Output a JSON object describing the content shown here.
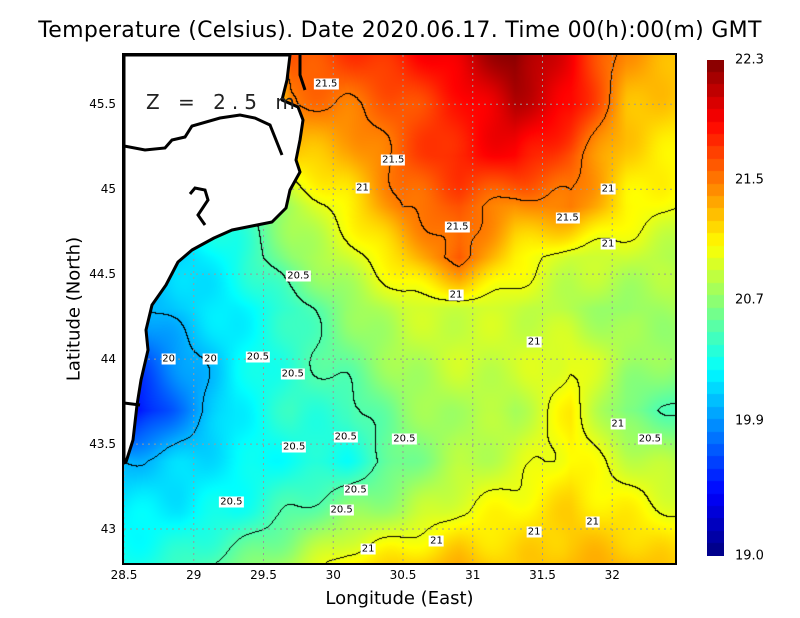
{
  "chart_data": {
    "type": "heatmap",
    "title": "Temperature (Celsius). Date 2020.06.17. Time 00(h):00(m) GMT",
    "annotation": "Z = 2.5 m",
    "xlabel": "Longitude (East)",
    "ylabel": "Latitude (North)",
    "xlim": [
      28.5,
      32.45
    ],
    "ylim": [
      42.8,
      45.79
    ],
    "xticks": [
      "28.5",
      "29",
      "29.5",
      "30",
      "30.5",
      "31",
      "31.5",
      "32"
    ],
    "xtick_values": [
      28.5,
      29,
      29.5,
      30,
      30.5,
      31,
      31.5,
      32
    ],
    "yticks": [
      "43",
      "43.5",
      "44",
      "44.5",
      "45",
      "45.5"
    ],
    "ytick_values": [
      43,
      43.5,
      44,
      44.5,
      45,
      45.5
    ],
    "grid": true,
    "colorbar": {
      "range": [
        19.0,
        22.3
      ],
      "ticks": [
        "22.3",
        "21.5",
        "20.7",
        "19.9",
        "19.0"
      ],
      "tick_values": [
        22.3,
        21.5,
        20.7,
        19.9,
        19.0
      ],
      "colormap": "jet",
      "placement": "right"
    },
    "contour_levels": [
      20,
      20.5,
      21,
      21.5
    ],
    "grid_lon": [
      28.5,
      28.9,
      29.3,
      29.7,
      30.1,
      30.5,
      30.9,
      31.3,
      31.7,
      32.1,
      32.45
    ],
    "grid_lat": [
      45.8,
      45.5,
      45.2,
      44.9,
      44.6,
      44.3,
      44.0,
      43.7,
      43.4,
      43.1,
      42.8
    ],
    "values": [
      [
        20.3,
        20.3,
        20.5,
        21.6,
        21.7,
        21.8,
        22.0,
        22.3,
        21.9,
        21.4,
        21.3
      ],
      [
        20.3,
        20.3,
        20.5,
        21.5,
        21.5,
        21.6,
        21.8,
        22.1,
        21.9,
        21.3,
        21.2
      ],
      [
        20.3,
        20.3,
        20.5,
        21.2,
        21.3,
        21.6,
        21.8,
        21.9,
        21.6,
        21.2,
        21.1
      ],
      [
        20.3,
        20.3,
        20.4,
        20.8,
        21.1,
        21.5,
        21.6,
        21.4,
        21.5,
        21.1,
        21.0
      ],
      [
        20.0,
        20.1,
        20.3,
        20.7,
        20.9,
        21.2,
        21.6,
        21.1,
        20.9,
        20.9,
        20.8
      ],
      [
        19.9,
        20.1,
        20.2,
        20.4,
        20.7,
        20.9,
        20.9,
        20.9,
        20.8,
        20.7,
        20.8
      ],
      [
        19.6,
        19.9,
        20.2,
        20.4,
        20.6,
        20.8,
        20.9,
        20.9,
        21.0,
        20.8,
        20.7
      ],
      [
        19.3,
        19.8,
        20.2,
        20.4,
        20.4,
        20.7,
        20.8,
        20.8,
        21.1,
        20.6,
        20.5
      ],
      [
        20.0,
        20.1,
        20.2,
        20.3,
        20.3,
        20.6,
        20.8,
        20.9,
        21.1,
        20.9,
        20.8
      ],
      [
        20.2,
        20.2,
        20.3,
        20.5,
        20.7,
        20.8,
        21.0,
        21.1,
        21.2,
        21.1,
        21.0
      ],
      [
        20.3,
        20.4,
        20.6,
        20.8,
        21.1,
        21.2,
        21.3,
        21.2,
        21.3,
        21.3,
        21.2
      ]
    ],
    "contour_labels": [
      {
        "text": "21.5",
        "lon": 29.95,
        "lat": 45.62
      },
      {
        "text": "21.5",
        "lon": 30.43,
        "lat": 45.17
      },
      {
        "text": "21",
        "lon": 30.21,
        "lat": 45.01
      },
      {
        "text": "21.5",
        "lon": 30.89,
        "lat": 44.78
      },
      {
        "text": "21.5",
        "lon": 31.68,
        "lat": 44.83
      },
      {
        "text": "21",
        "lon": 31.97,
        "lat": 45.0
      },
      {
        "text": "21",
        "lon": 31.97,
        "lat": 44.68
      },
      {
        "text": "20.5",
        "lon": 29.75,
        "lat": 44.49
      },
      {
        "text": "21",
        "lon": 30.88,
        "lat": 44.38
      },
      {
        "text": "21",
        "lon": 31.44,
        "lat": 44.1
      },
      {
        "text": "20",
        "lon": 28.82,
        "lat": 44.0
      },
      {
        "text": "20",
        "lon": 29.12,
        "lat": 44.0
      },
      {
        "text": "20.5",
        "lon": 29.46,
        "lat": 44.01
      },
      {
        "text": "20.5",
        "lon": 29.71,
        "lat": 43.91
      },
      {
        "text": "20.5",
        "lon": 30.09,
        "lat": 43.54
      },
      {
        "text": "20.5",
        "lon": 30.51,
        "lat": 43.53
      },
      {
        "text": "20.5",
        "lon": 29.72,
        "lat": 43.48
      },
      {
        "text": "21",
        "lon": 32.04,
        "lat": 43.62
      },
      {
        "text": "20.5",
        "lon": 32.27,
        "lat": 43.53
      },
      {
        "text": "20.5",
        "lon": 30.16,
        "lat": 43.23
      },
      {
        "text": "20.5",
        "lon": 29.27,
        "lat": 43.16
      },
      {
        "text": "20.5",
        "lon": 30.06,
        "lat": 43.11
      },
      {
        "text": "21",
        "lon": 31.86,
        "lat": 43.04
      },
      {
        "text": "21",
        "lon": 31.44,
        "lat": 42.98
      },
      {
        "text": "21",
        "lon": 30.74,
        "lat": 42.93
      },
      {
        "text": "21",
        "lon": 30.25,
        "lat": 42.88
      }
    ]
  }
}
